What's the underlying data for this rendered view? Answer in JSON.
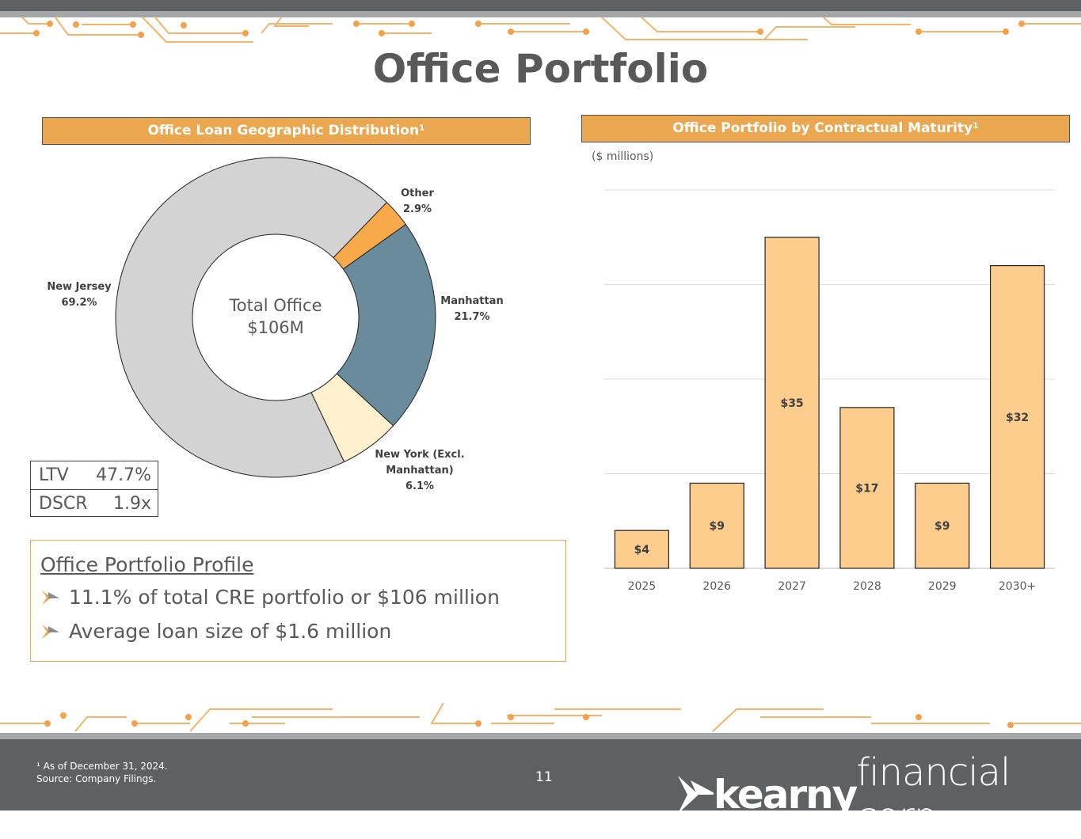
{
  "title": "Office Portfolio",
  "left_header": "Office Loan Geographic Distribution¹",
  "right_header": "Office Portfolio by Contractual Maturity¹",
  "colors": {
    "accent": "#eba74f",
    "dark": "#5f6062"
  },
  "donut": {
    "center_label_1": "Total Office",
    "center_label_2": "$106M",
    "slices": [
      {
        "name": "Other",
        "pct_label": "2.9%",
        "value": 2.9,
        "color": "#f8a94a"
      },
      {
        "name": "Manhattan",
        "pct_label": "21.7%",
        "value": 21.7,
        "color": "#6a8b9b"
      },
      {
        "name": "New York  (Excl. Manhattan)",
        "name_line1": "New York  (Excl.",
        "name_line2": "Manhattan)",
        "pct_label": "6.1%",
        "value": 6.1,
        "color": "#fff1ce"
      },
      {
        "name": "New Jersey",
        "pct_label": "69.2%",
        "value": 69.2,
        "color": "#d3d3d3"
      }
    ]
  },
  "metrics": [
    {
      "label": "LTV",
      "value": "47.7%"
    },
    {
      "label": "DSCR",
      "value": "1.9x"
    }
  ],
  "profile": {
    "title": "Office Portfolio Profile",
    "bullets": [
      "11.1% of total CRE portfolio or $106 million",
      "Average loan size of $1.6 million"
    ]
  },
  "chart_data": [
    {
      "type": "pie",
      "title": "Office Loan Geographic Distribution¹",
      "categories": [
        "Other",
        "Manhattan",
        "New York (Excl. Manhattan)",
        "New Jersey"
      ],
      "values": [
        2.9,
        21.7,
        6.1,
        69.2
      ]
    },
    {
      "type": "bar",
      "title": "Office Portfolio by Contractual Maturity¹",
      "unit_label": "($ millions)",
      "categories": [
        "2025",
        "2026",
        "2027",
        "2028",
        "2029",
        "2030+"
      ],
      "values": [
        4,
        9,
        35,
        17,
        9,
        32
      ],
      "data_labels": [
        "$4",
        "$9",
        "$35",
        "$17",
        "$9",
        "$32"
      ],
      "ylim": [
        0,
        40
      ],
      "grid": true,
      "bar_color": "#fdcd8e"
    }
  ],
  "footer": {
    "note_1": "¹ As of December 31, 2024.",
    "note_2": "Source: Company Filings.",
    "page": "11",
    "logo_bold": "kearny",
    "logo_light": "financial corp."
  }
}
